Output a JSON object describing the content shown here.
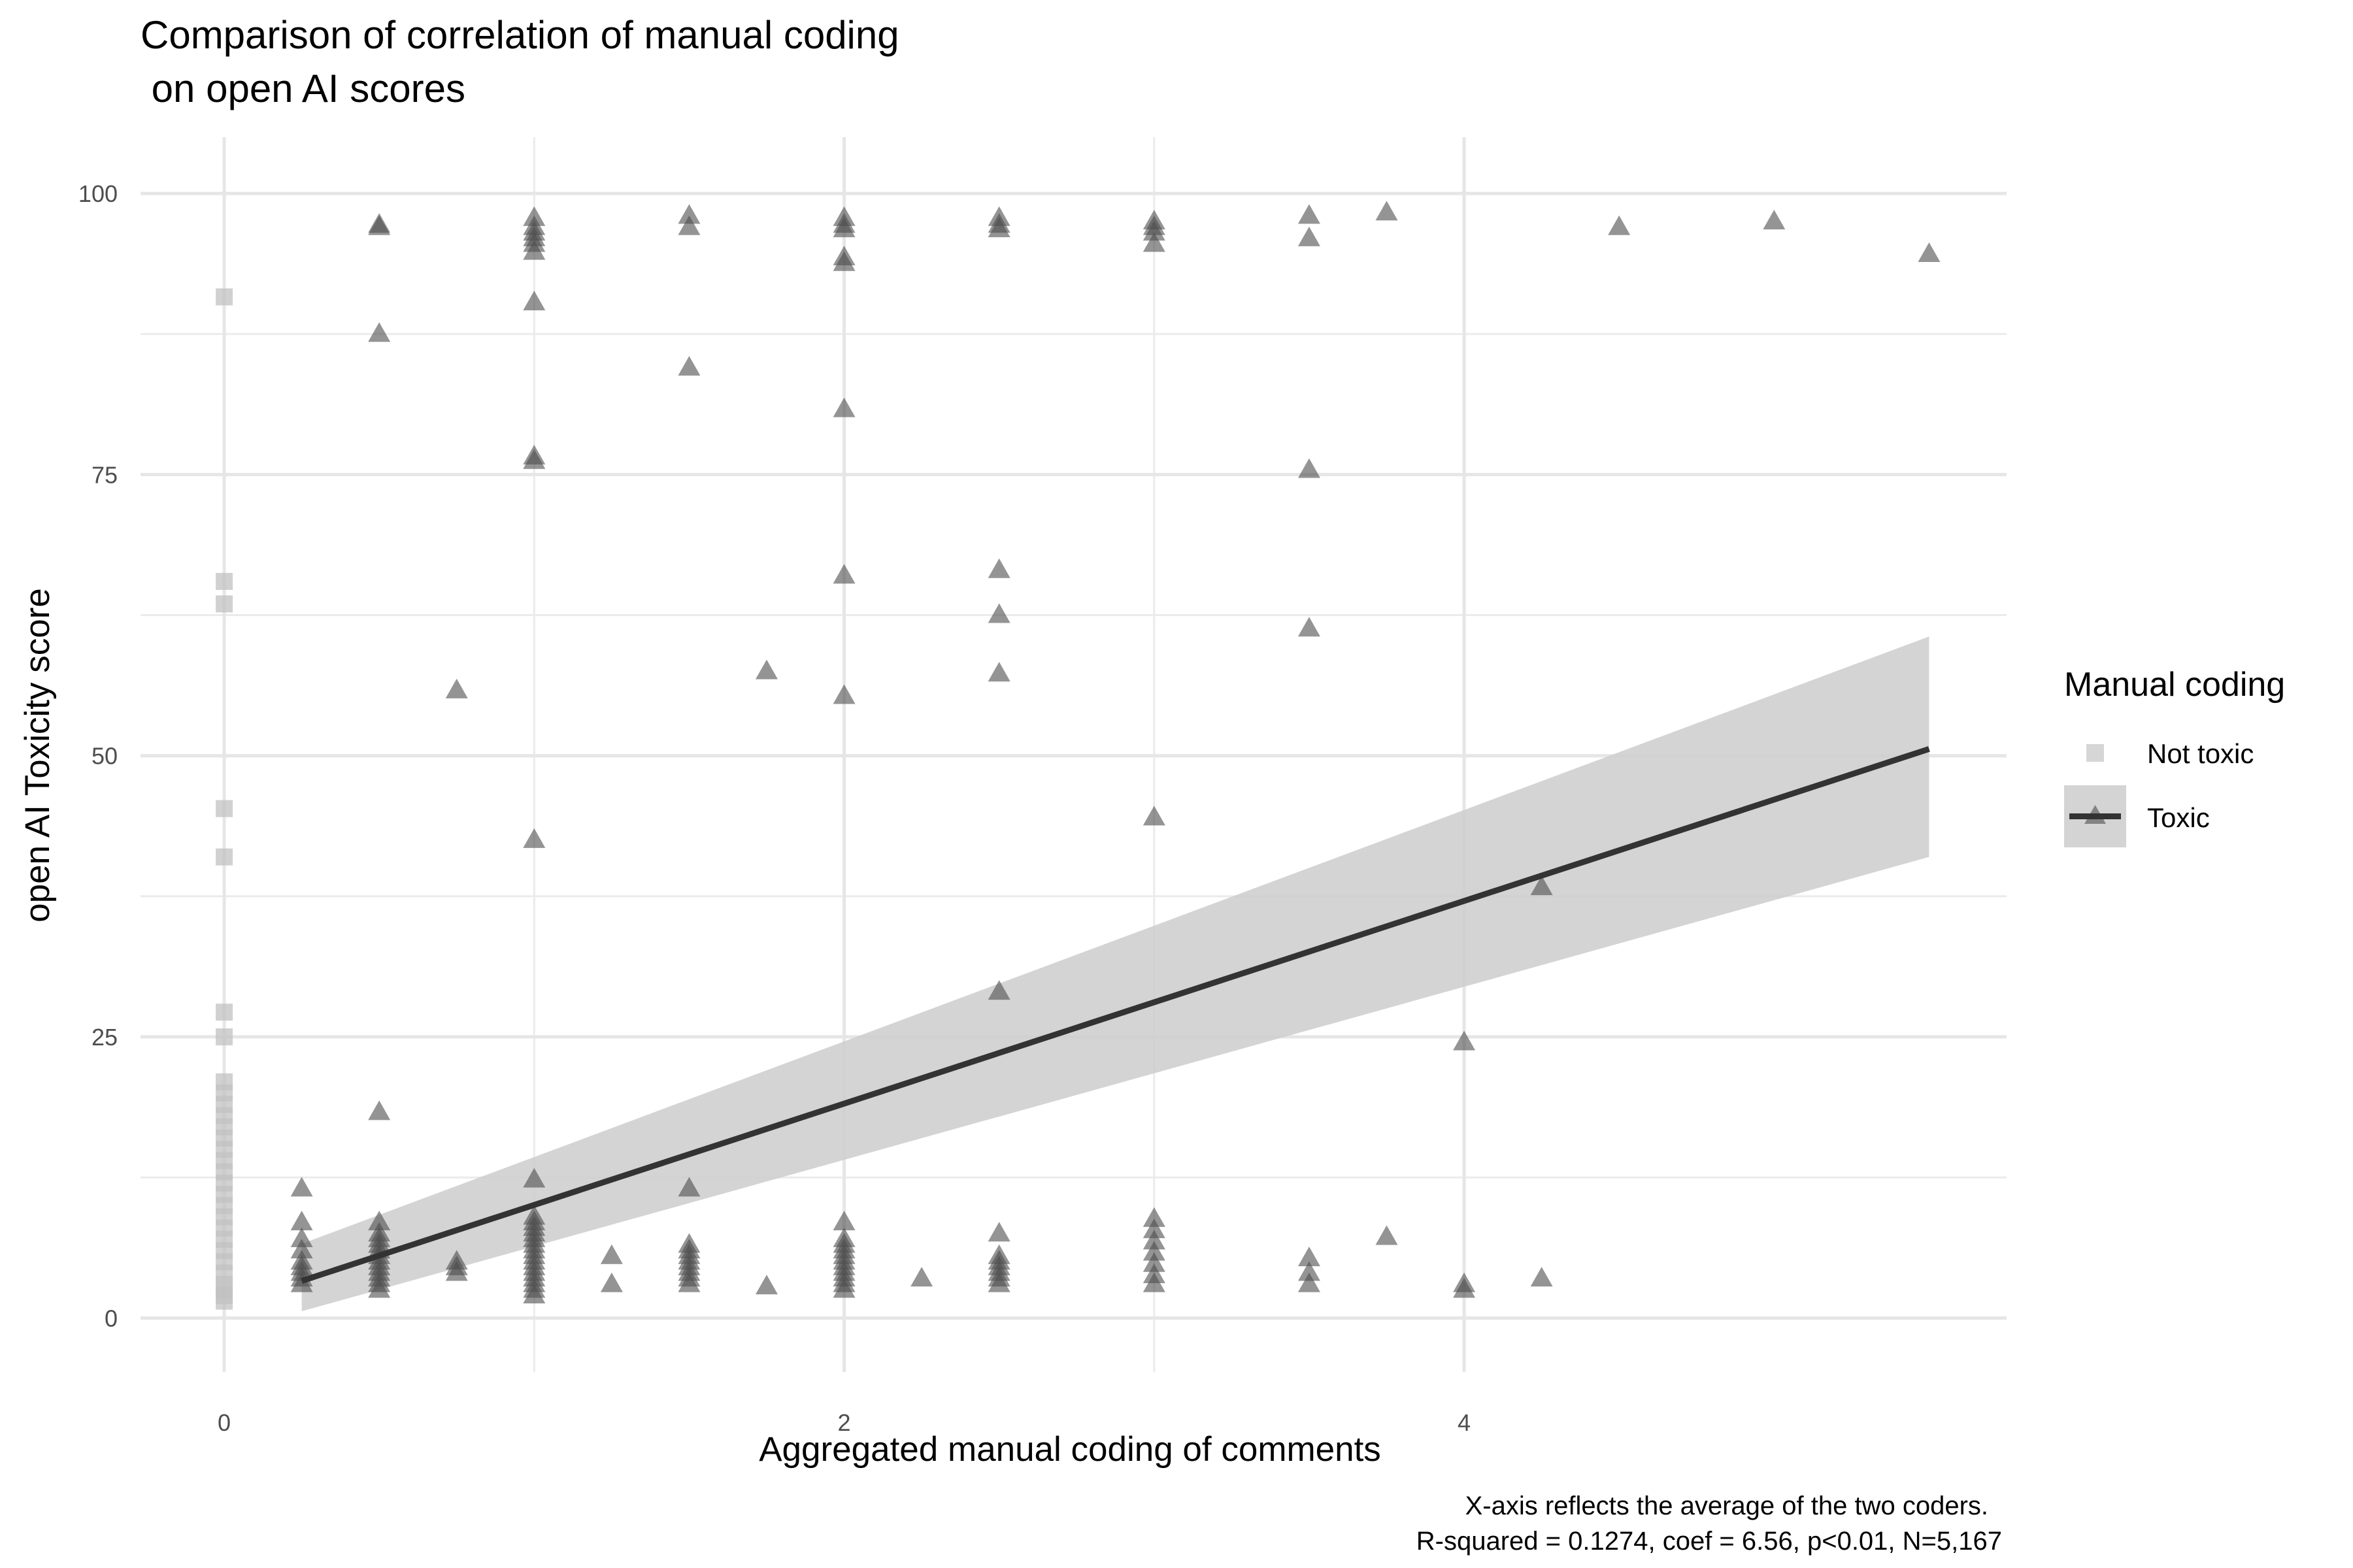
{
  "chart_data": {
    "type": "scatter",
    "title_line1": "Comparison of correlation of manual coding",
    "title_line2": " on open AI scores",
    "xlabel": "Aggregated manual coding of comments",
    "ylabel": "open AI Toxicity score",
    "caption_line1": "X-axis reflects the average of the two coders.",
    "caption_line2": "R-squared = 0.1274, coef = 6.56, p<0.01, N=5,167",
    "xlim": [
      -0.27,
      5.75
    ],
    "ylim": [
      -4.8,
      105
    ],
    "x_ticks": [
      0,
      2,
      4
    ],
    "y_ticks": [
      0,
      25,
      50,
      75,
      100
    ],
    "grid": true,
    "legend": {
      "title": "Manual coding",
      "position": "right",
      "entries": [
        {
          "label": "Not toxic",
          "shape": "square",
          "color": "#cccccc"
        },
        {
          "label": "Toxic",
          "shape": "triangle",
          "color": "#4d4d4d"
        }
      ]
    },
    "series": [
      {
        "name": "Not toxic",
        "shape": "square",
        "color": "#c2c2c2",
        "points": [
          [
            0,
            90.8
          ],
          [
            0,
            65.5
          ],
          [
            0,
            63.5
          ],
          [
            0,
            45.3
          ],
          [
            0,
            41
          ],
          [
            0,
            27.2
          ],
          [
            0,
            25
          ],
          [
            0,
            21
          ],
          [
            0,
            20
          ],
          [
            0,
            19
          ],
          [
            0,
            18
          ],
          [
            0,
            17
          ],
          [
            0,
            16
          ],
          [
            0,
            15
          ],
          [
            0,
            14
          ],
          [
            0,
            13
          ],
          [
            0,
            12
          ],
          [
            0,
            11
          ],
          [
            0,
            10
          ],
          [
            0,
            9
          ],
          [
            0,
            8
          ],
          [
            0,
            7
          ],
          [
            0,
            6
          ],
          [
            0,
            5
          ],
          [
            0,
            4
          ],
          [
            0,
            3
          ],
          [
            0,
            2.5
          ],
          [
            0,
            2
          ],
          [
            0,
            1.5
          ]
        ]
      },
      {
        "name": "Toxic",
        "shape": "triangle",
        "color": "#4d4d4d",
        "points": [
          [
            0.25,
            11.5
          ],
          [
            0.25,
            8.5
          ],
          [
            0.25,
            7
          ],
          [
            0.25,
            6
          ],
          [
            0.25,
            5
          ],
          [
            0.25,
            4.5
          ],
          [
            0.25,
            4
          ],
          [
            0.25,
            3.5
          ],
          [
            0.25,
            3
          ],
          [
            0.5,
            97
          ],
          [
            0.5,
            97.2
          ],
          [
            0.5,
            87.5
          ],
          [
            0.5,
            18.3
          ],
          [
            0.5,
            8.5
          ],
          [
            0.5,
            7.5
          ],
          [
            0.5,
            7
          ],
          [
            0.5,
            6.5
          ],
          [
            0.5,
            6
          ],
          [
            0.5,
            5.5
          ],
          [
            0.5,
            5
          ],
          [
            0.5,
            4.5
          ],
          [
            0.5,
            4
          ],
          [
            0.5,
            3.5
          ],
          [
            0.5,
            3
          ],
          [
            0.5,
            2.5
          ],
          [
            0.75,
            55.8
          ],
          [
            0.75,
            5
          ],
          [
            0.75,
            4.5
          ],
          [
            0.75,
            4
          ],
          [
            1,
            97.8
          ],
          [
            1,
            97
          ],
          [
            1,
            96.5
          ],
          [
            1,
            96
          ],
          [
            1,
            95.5
          ],
          [
            1,
            94.8
          ],
          [
            1,
            90.3
          ],
          [
            1,
            76.6
          ],
          [
            1,
            76.2
          ],
          [
            1,
            42.5
          ],
          [
            1,
            12.3
          ],
          [
            1,
            9
          ],
          [
            1,
            8.5
          ],
          [
            1,
            8
          ],
          [
            1,
            7.5
          ],
          [
            1,
            7
          ],
          [
            1,
            6.5
          ],
          [
            1,
            6
          ],
          [
            1,
            5.5
          ],
          [
            1,
            5
          ],
          [
            1,
            4.5
          ],
          [
            1,
            4
          ],
          [
            1,
            3.5
          ],
          [
            1,
            3
          ],
          [
            1,
            2.5
          ],
          [
            1,
            2
          ],
          [
            1.25,
            5.5
          ],
          [
            1.25,
            3
          ],
          [
            1.5,
            98
          ],
          [
            1.5,
            97
          ],
          [
            1.5,
            84.5
          ],
          [
            1.5,
            11.5
          ],
          [
            1.5,
            6.5
          ],
          [
            1.5,
            6
          ],
          [
            1.5,
            5.5
          ],
          [
            1.5,
            5
          ],
          [
            1.5,
            4.5
          ],
          [
            1.5,
            4
          ],
          [
            1.5,
            3.5
          ],
          [
            1.5,
            3
          ],
          [
            1.75,
            57.5
          ],
          [
            1.75,
            2.8
          ],
          [
            2,
            97.8
          ],
          [
            2,
            97.2
          ],
          [
            2,
            96.8
          ],
          [
            2,
            94.3
          ],
          [
            2,
            93.8
          ],
          [
            2,
            80.8
          ],
          [
            2,
            66
          ],
          [
            2,
            55.3
          ],
          [
            2,
            8.5
          ],
          [
            2,
            7
          ],
          [
            2,
            6.5
          ],
          [
            2,
            6
          ],
          [
            2,
            5.5
          ],
          [
            2,
            5
          ],
          [
            2,
            4.5
          ],
          [
            2,
            4
          ],
          [
            2,
            3.5
          ],
          [
            2,
            3
          ],
          [
            2,
            2.5
          ],
          [
            2.25,
            3.5
          ],
          [
            2.5,
            97.8
          ],
          [
            2.5,
            97.2
          ],
          [
            2.5,
            96.8
          ],
          [
            2.5,
            66.5
          ],
          [
            2.5,
            62.5
          ],
          [
            2.5,
            57.3
          ],
          [
            2.5,
            29
          ],
          [
            2.5,
            7.5
          ],
          [
            2.5,
            5.5
          ],
          [
            2.5,
            5
          ],
          [
            2.5,
            4.5
          ],
          [
            2.5,
            4
          ],
          [
            2.5,
            3.5
          ],
          [
            2.5,
            3
          ],
          [
            3,
            97.5
          ],
          [
            3,
            97
          ],
          [
            3,
            96.5
          ],
          [
            3,
            95.5
          ],
          [
            3,
            44.5
          ],
          [
            3,
            8.8
          ],
          [
            3,
            7.8
          ],
          [
            3,
            6.8
          ],
          [
            3,
            5.8
          ],
          [
            3,
            4.8
          ],
          [
            3,
            3.8
          ],
          [
            3,
            3
          ],
          [
            3.5,
            98
          ],
          [
            3.5,
            96
          ],
          [
            3.5,
            75.4
          ],
          [
            3.5,
            61.3
          ],
          [
            3.5,
            5.3
          ],
          [
            3.5,
            4
          ],
          [
            3.5,
            3
          ],
          [
            3.75,
            98.3
          ],
          [
            3.75,
            7.2
          ],
          [
            4,
            24.5
          ],
          [
            4,
            3
          ],
          [
            4,
            2.5
          ],
          [
            4.25,
            38.3
          ],
          [
            4.25,
            3.5
          ],
          [
            4.5,
            97
          ],
          [
            5,
            97.5
          ],
          [
            5.5,
            94.6
          ]
        ]
      }
    ],
    "fit_line": {
      "name": "Toxic",
      "x": [
        0.25,
        5.5
      ],
      "y": [
        3.3,
        50.6
      ],
      "ci_upper": [
        6.6,
        60.6
      ],
      "ci_lower": [
        0.6,
        41
      ],
      "color": "#333333",
      "band_color": "#cccccc"
    }
  }
}
